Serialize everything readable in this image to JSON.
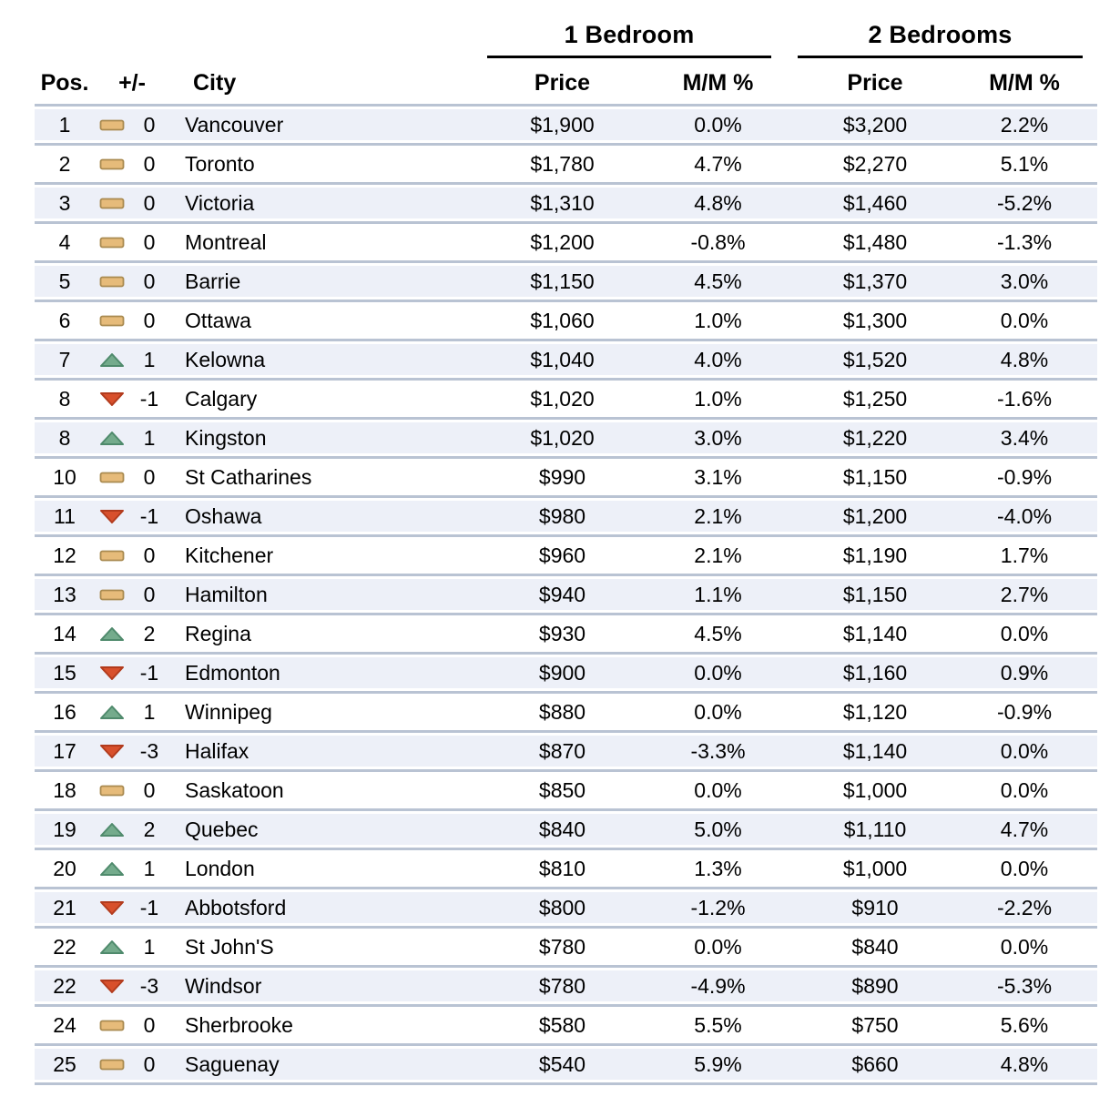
{
  "colors": {
    "row_band": "#edf0f8",
    "row_rule": "#b9c3d3",
    "header_rule": "#000000",
    "up_fill": "#74ab8c",
    "up_stroke": "#4f8a6c",
    "down_fill": "#d8502c",
    "down_stroke": "#b23b1d",
    "same_fill": "#e6bb7a",
    "same_stroke": "#a98a50"
  },
  "chart_data": {
    "type": "table",
    "group_headers": [
      "1 Bedroom",
      "2 Bedrooms"
    ],
    "columns": [
      "Pos.",
      "+/-",
      "City",
      "Price",
      "M/M %",
      "Price",
      "M/M %"
    ],
    "trend_legend": {
      "up": "green up triangle",
      "down": "red down triangle",
      "same": "tan dash (no change)"
    },
    "rows": [
      {
        "pos": "1",
        "trend": "same",
        "change": "0",
        "city": "Vancouver",
        "br1_price": "$1,900",
        "br1_mm": "0.0%",
        "br2_price": "$3,200",
        "br2_mm": "2.2%"
      },
      {
        "pos": "2",
        "trend": "same",
        "change": "0",
        "city": "Toronto",
        "br1_price": "$1,780",
        "br1_mm": "4.7%",
        "br2_price": "$2,270",
        "br2_mm": "5.1%"
      },
      {
        "pos": "3",
        "trend": "same",
        "change": "0",
        "city": "Victoria",
        "br1_price": "$1,310",
        "br1_mm": "4.8%",
        "br2_price": "$1,460",
        "br2_mm": "-5.2%"
      },
      {
        "pos": "4",
        "trend": "same",
        "change": "0",
        "city": "Montreal",
        "br1_price": "$1,200",
        "br1_mm": "-0.8%",
        "br2_price": "$1,480",
        "br2_mm": "-1.3%"
      },
      {
        "pos": "5",
        "trend": "same",
        "change": "0",
        "city": "Barrie",
        "br1_price": "$1,150",
        "br1_mm": "4.5%",
        "br2_price": "$1,370",
        "br2_mm": "3.0%"
      },
      {
        "pos": "6",
        "trend": "same",
        "change": "0",
        "city": "Ottawa",
        "br1_price": "$1,060",
        "br1_mm": "1.0%",
        "br2_price": "$1,300",
        "br2_mm": "0.0%"
      },
      {
        "pos": "7",
        "trend": "up",
        "change": "1",
        "city": "Kelowna",
        "br1_price": "$1,040",
        "br1_mm": "4.0%",
        "br2_price": "$1,520",
        "br2_mm": "4.8%"
      },
      {
        "pos": "8",
        "trend": "down",
        "change": "-1",
        "city": "Calgary",
        "br1_price": "$1,020",
        "br1_mm": "1.0%",
        "br2_price": "$1,250",
        "br2_mm": "-1.6%"
      },
      {
        "pos": "8",
        "trend": "up",
        "change": "1",
        "city": "Kingston",
        "br1_price": "$1,020",
        "br1_mm": "3.0%",
        "br2_price": "$1,220",
        "br2_mm": "3.4%"
      },
      {
        "pos": "10",
        "trend": "same",
        "change": "0",
        "city": "St Catharines",
        "br1_price": "$990",
        "br1_mm": "3.1%",
        "br2_price": "$1,150",
        "br2_mm": "-0.9%"
      },
      {
        "pos": "11",
        "trend": "down",
        "change": "-1",
        "city": "Oshawa",
        "br1_price": "$980",
        "br1_mm": "2.1%",
        "br2_price": "$1,200",
        "br2_mm": "-4.0%"
      },
      {
        "pos": "12",
        "trend": "same",
        "change": "0",
        "city": "Kitchener",
        "br1_price": "$960",
        "br1_mm": "2.1%",
        "br2_price": "$1,190",
        "br2_mm": "1.7%"
      },
      {
        "pos": "13",
        "trend": "same",
        "change": "0",
        "city": "Hamilton",
        "br1_price": "$940",
        "br1_mm": "1.1%",
        "br2_price": "$1,150",
        "br2_mm": "2.7%"
      },
      {
        "pos": "14",
        "trend": "up",
        "change": "2",
        "city": "Regina",
        "br1_price": "$930",
        "br1_mm": "4.5%",
        "br2_price": "$1,140",
        "br2_mm": "0.0%"
      },
      {
        "pos": "15",
        "trend": "down",
        "change": "-1",
        "city": "Edmonton",
        "br1_price": "$900",
        "br1_mm": "0.0%",
        "br2_price": "$1,160",
        "br2_mm": "0.9%"
      },
      {
        "pos": "16",
        "trend": "up",
        "change": "1",
        "city": "Winnipeg",
        "br1_price": "$880",
        "br1_mm": "0.0%",
        "br2_price": "$1,120",
        "br2_mm": "-0.9%"
      },
      {
        "pos": "17",
        "trend": "down",
        "change": "-3",
        "city": "Halifax",
        "br1_price": "$870",
        "br1_mm": "-3.3%",
        "br2_price": "$1,140",
        "br2_mm": "0.0%"
      },
      {
        "pos": "18",
        "trend": "same",
        "change": "0",
        "city": "Saskatoon",
        "br1_price": "$850",
        "br1_mm": "0.0%",
        "br2_price": "$1,000",
        "br2_mm": "0.0%"
      },
      {
        "pos": "19",
        "trend": "up",
        "change": "2",
        "city": "Quebec",
        "br1_price": "$840",
        "br1_mm": "5.0%",
        "br2_price": "$1,110",
        "br2_mm": "4.7%"
      },
      {
        "pos": "20",
        "trend": "up",
        "change": "1",
        "city": "London",
        "br1_price": "$810",
        "br1_mm": "1.3%",
        "br2_price": "$1,000",
        "br2_mm": "0.0%"
      },
      {
        "pos": "21",
        "trend": "down",
        "change": "-1",
        "city": "Abbotsford",
        "br1_price": "$800",
        "br1_mm": "-1.2%",
        "br2_price": "$910",
        "br2_mm": "-2.2%"
      },
      {
        "pos": "22",
        "trend": "up",
        "change": "1",
        "city": "St John'S",
        "br1_price": "$780",
        "br1_mm": "0.0%",
        "br2_price": "$840",
        "br2_mm": "0.0%"
      },
      {
        "pos": "22",
        "trend": "down",
        "change": "-3",
        "city": "Windsor",
        "br1_price": "$780",
        "br1_mm": "-4.9%",
        "br2_price": "$890",
        "br2_mm": "-5.3%"
      },
      {
        "pos": "24",
        "trend": "same",
        "change": "0",
        "city": "Sherbrooke",
        "br1_price": "$580",
        "br1_mm": "5.5%",
        "br2_price": "$750",
        "br2_mm": "5.6%"
      },
      {
        "pos": "25",
        "trend": "same",
        "change": "0",
        "city": "Saguenay",
        "br1_price": "$540",
        "br1_mm": "5.9%",
        "br2_price": "$660",
        "br2_mm": "4.8%"
      }
    ]
  }
}
